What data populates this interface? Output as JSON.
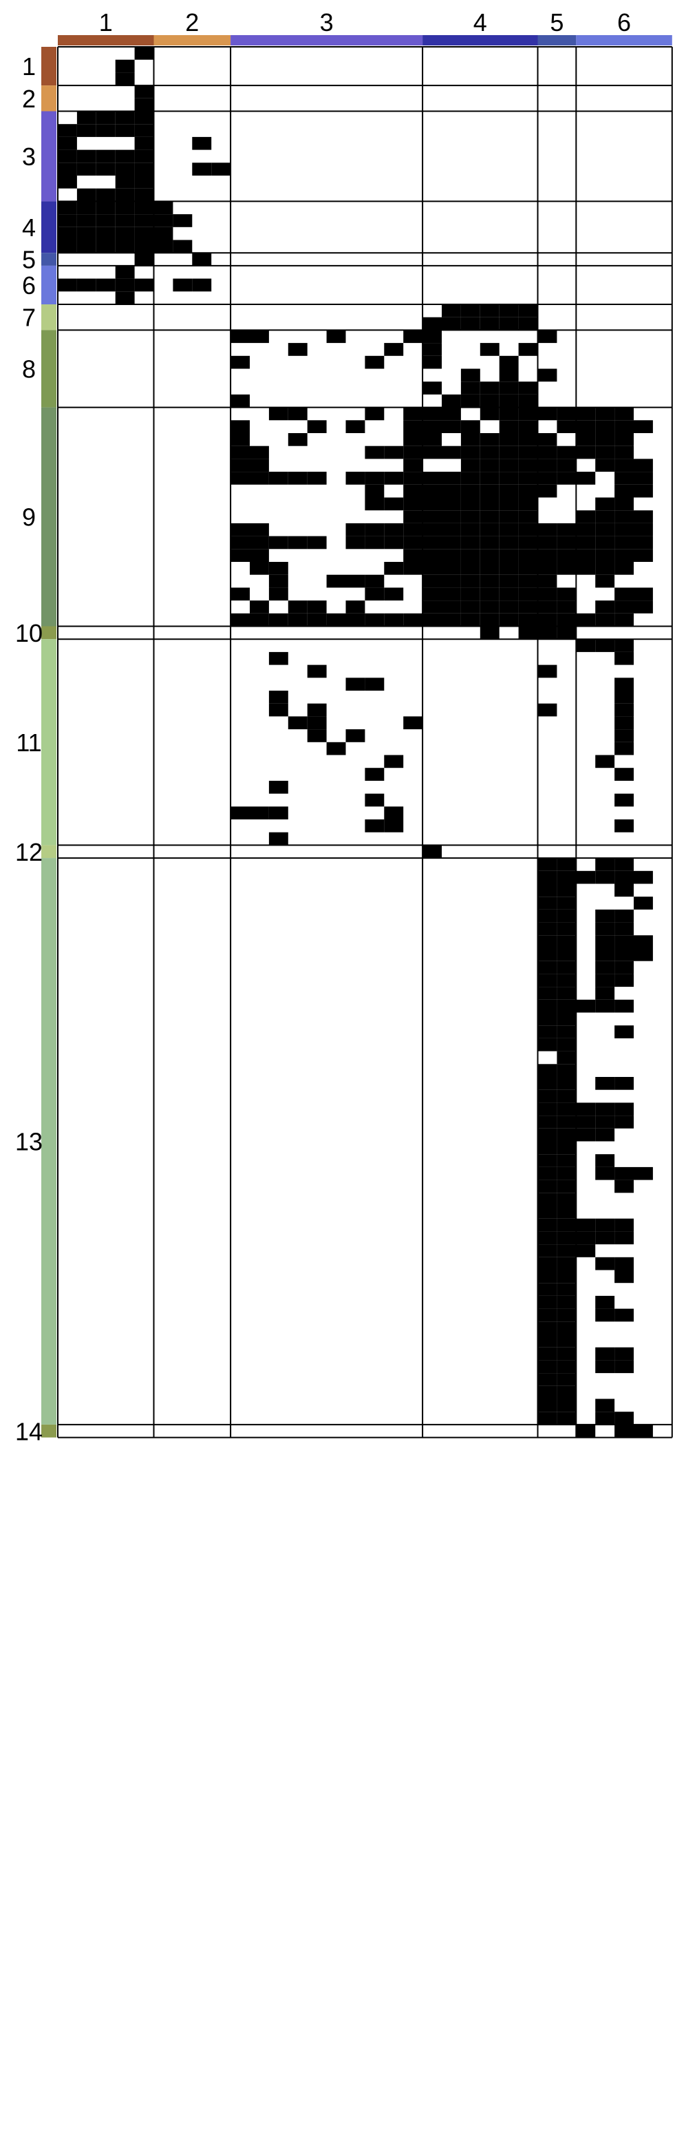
{
  "chart_data": {
    "type": "heatmap",
    "title": "",
    "xlabel": "",
    "ylabel": "",
    "legend": "none",
    "column_groups": [
      {
        "label": "1",
        "color": "#A0522D",
        "cols": 5
      },
      {
        "label": "2",
        "color": "#D8964F",
        "cols": 4
      },
      {
        "label": "3",
        "color": "#6A5ACD",
        "cols": 10
      },
      {
        "label": "4",
        "color": "#3232A6",
        "cols": 6
      },
      {
        "label": "5",
        "color": "#4357A8",
        "cols": 2
      },
      {
        "label": "6",
        "color": "#6A78DC",
        "cols": 5
      }
    ],
    "row_groups": [
      {
        "label": "1",
        "color": "#A0522D",
        "rows": 3,
        "fills": [
          [
            4
          ],
          [
            3
          ],
          [
            3
          ]
        ]
      },
      {
        "label": "2",
        "color": "#D8964F",
        "rows": 2,
        "fills": [
          [
            4
          ],
          [
            4
          ]
        ]
      },
      {
        "label": "3",
        "color": "#6A5ACD",
        "rows": 7,
        "fills": [
          [
            1,
            2,
            3,
            4
          ],
          [
            0,
            1,
            2,
            3,
            4
          ],
          [
            0,
            4,
            7
          ],
          [
            0,
            1,
            2,
            3,
            4
          ],
          [
            0,
            1,
            2,
            3,
            4,
            7,
            8
          ],
          [
            0,
            3,
            4
          ],
          [
            1,
            2,
            3,
            4
          ]
        ]
      },
      {
        "label": "4",
        "color": "#3232A6",
        "rows": 4,
        "fills": [
          [
            0,
            1,
            2,
            3,
            4,
            5
          ],
          [
            0,
            1,
            2,
            3,
            4,
            5,
            6
          ],
          [
            0,
            1,
            2,
            3,
            4,
            5
          ],
          [
            0,
            1,
            2,
            3,
            4,
            5,
            6
          ]
        ]
      },
      {
        "label": "5",
        "color": "#4357A8",
        "rows": 1,
        "fills": [
          [
            4,
            7
          ]
        ]
      },
      {
        "label": "6",
        "color": "#6A78DC",
        "rows": 3,
        "fills": [
          [
            3
          ],
          [
            0,
            1,
            2,
            3,
            4,
            6,
            7
          ],
          [
            3
          ]
        ]
      },
      {
        "label": "7",
        "color": "#B5CC85",
        "rows": 2,
        "fills": [
          [
            20,
            21,
            22,
            23,
            24
          ],
          [
            19,
            20,
            21,
            22,
            23,
            24
          ]
        ]
      },
      {
        "label": "8",
        "color": "#7E9A53",
        "rows": 6,
        "fills": [
          [
            9,
            10,
            14,
            18,
            19,
            25
          ],
          [
            12,
            17,
            19,
            22,
            24
          ],
          [
            9,
            16,
            19,
            23
          ],
          [
            21,
            23,
            25
          ],
          [
            19,
            21,
            22,
            23,
            24
          ],
          [
            9,
            20,
            21,
            22,
            23,
            24
          ]
        ]
      },
      {
        "label": "9",
        "color": "#739467",
        "rows": 17,
        "fills": [
          [
            11,
            12,
            16,
            18,
            19,
            20,
            22,
            23,
            24,
            25,
            26,
            27,
            28,
            29
          ],
          [
            9,
            13,
            15,
            18,
            19,
            20,
            21,
            23,
            24,
            26,
            27,
            28,
            29,
            30
          ],
          [
            9,
            12,
            18,
            19,
            21,
            22,
            23,
            24,
            25,
            27,
            28,
            29
          ],
          [
            9,
            10,
            16,
            17,
            18,
            19,
            20,
            21,
            22,
            23,
            24,
            25,
            26,
            27,
            28,
            29
          ],
          [
            9,
            10,
            18,
            21,
            22,
            23,
            24,
            25,
            26,
            28,
            29,
            30
          ],
          [
            9,
            10,
            11,
            12,
            13,
            15,
            16,
            17,
            18,
            19,
            20,
            21,
            22,
            23,
            24,
            25,
            26,
            27,
            29,
            30
          ],
          [
            16,
            18,
            19,
            20,
            21,
            22,
            23,
            24,
            25,
            29,
            30
          ],
          [
            16,
            17,
            18,
            19,
            20,
            21,
            22,
            23,
            24,
            28,
            29
          ],
          [
            18,
            19,
            20,
            21,
            22,
            23,
            24,
            27,
            28,
            29,
            30
          ],
          [
            9,
            10,
            15,
            16,
            17,
            18,
            19,
            20,
            21,
            22,
            23,
            24,
            25,
            26,
            27,
            28,
            29,
            30
          ],
          [
            9,
            10,
            11,
            12,
            13,
            15,
            16,
            17,
            18,
            19,
            20,
            21,
            22,
            23,
            24,
            25,
            26,
            27,
            28,
            29,
            30
          ],
          [
            9,
            10,
            18,
            19,
            20,
            21,
            22,
            23,
            24,
            25,
            26,
            27,
            28,
            29,
            30
          ],
          [
            10,
            11,
            17,
            18,
            19,
            20,
            21,
            22,
            23,
            24,
            25,
            26,
            27,
            28,
            29
          ],
          [
            11,
            14,
            15,
            16,
            19,
            20,
            21,
            22,
            23,
            24,
            25,
            28
          ],
          [
            9,
            11,
            16,
            17,
            19,
            20,
            21,
            22,
            23,
            24,
            25,
            26,
            29,
            30
          ],
          [
            10,
            12,
            13,
            15,
            19,
            20,
            21,
            22,
            23,
            24,
            25,
            26,
            28,
            29,
            30
          ],
          [
            9,
            10,
            11,
            12,
            13,
            14,
            15,
            16,
            17,
            18,
            19,
            20,
            21,
            22,
            23,
            24,
            25,
            26,
            27,
            28,
            29
          ]
        ]
      },
      {
        "label": "10",
        "color": "#8B9B4E",
        "rows": 1,
        "fills": [
          [
            22,
            24,
            25,
            26
          ]
        ]
      },
      {
        "label": "11",
        "color": "#A8CD8F",
        "rows": 16,
        "fills": [
          [
            27,
            28,
            29
          ],
          [
            11,
            29
          ],
          [
            13,
            25
          ],
          [
            15,
            16,
            29
          ],
          [
            11,
            29
          ],
          [
            11,
            13,
            25,
            29
          ],
          [
            12,
            13,
            18,
            29
          ],
          [
            13,
            15,
            29
          ],
          [
            14,
            29
          ],
          [
            17,
            28
          ],
          [
            16,
            29
          ],
          [
            11
          ],
          [
            16,
            29
          ],
          [
            9,
            10,
            11,
            17
          ],
          [
            16,
            17,
            29
          ],
          [
            11
          ]
        ]
      },
      {
        "label": "12",
        "color": "#B5CC85",
        "rows": 1,
        "fills": [
          [
            19
          ]
        ]
      },
      {
        "label": "13",
        "color": "#9BC194",
        "rows": 44,
        "fills": [
          [
            25,
            26,
            28,
            29
          ],
          [
            25,
            26,
            27,
            28,
            29,
            30
          ],
          [
            25,
            26,
            29
          ],
          [
            25,
            26,
            30
          ],
          [
            25,
            26,
            28,
            29
          ],
          [
            25,
            26,
            28,
            29
          ],
          [
            25,
            26,
            28,
            29,
            30
          ],
          [
            25,
            26,
            28,
            29,
            30
          ],
          [
            25,
            26,
            28,
            29
          ],
          [
            25,
            26,
            28,
            29
          ],
          [
            25,
            26,
            28
          ],
          [
            25,
            26,
            27,
            28,
            29
          ],
          [
            25,
            26
          ],
          [
            25,
            26,
            29
          ],
          [
            25,
            26
          ],
          [
            26
          ],
          [
            25,
            26
          ],
          [
            25,
            26,
            28,
            29
          ],
          [
            25,
            26
          ],
          [
            25,
            26,
            27,
            28,
            29
          ],
          [
            25,
            26,
            27,
            28,
            29
          ],
          [
            25,
            26,
            27,
            28
          ],
          [
            25,
            26
          ],
          [
            25,
            26,
            28
          ],
          [
            25,
            26,
            28,
            29,
            30
          ],
          [
            25,
            26,
            29
          ],
          [
            25,
            26
          ],
          [
            25,
            26
          ],
          [
            25,
            26,
            27,
            28,
            29
          ],
          [
            25,
            26,
            27,
            28,
            29
          ],
          [
            25,
            26,
            27
          ],
          [
            25,
            26,
            28,
            29
          ],
          [
            25,
            26,
            29
          ],
          [
            25,
            26
          ],
          [
            25,
            26,
            28
          ],
          [
            25,
            26,
            28,
            29
          ],
          [
            25,
            26
          ],
          [
            25,
            26
          ],
          [
            25,
            26,
            28,
            29
          ],
          [
            25,
            26,
            28,
            29
          ],
          [
            25,
            26
          ],
          [
            25,
            26
          ],
          [
            25,
            26,
            28
          ],
          [
            25,
            26,
            28,
            29
          ]
        ]
      },
      {
        "label": "14",
        "color": "#8B9B4E",
        "rows": 1,
        "fills": [
          [
            27,
            29,
            30
          ]
        ]
      }
    ]
  }
}
